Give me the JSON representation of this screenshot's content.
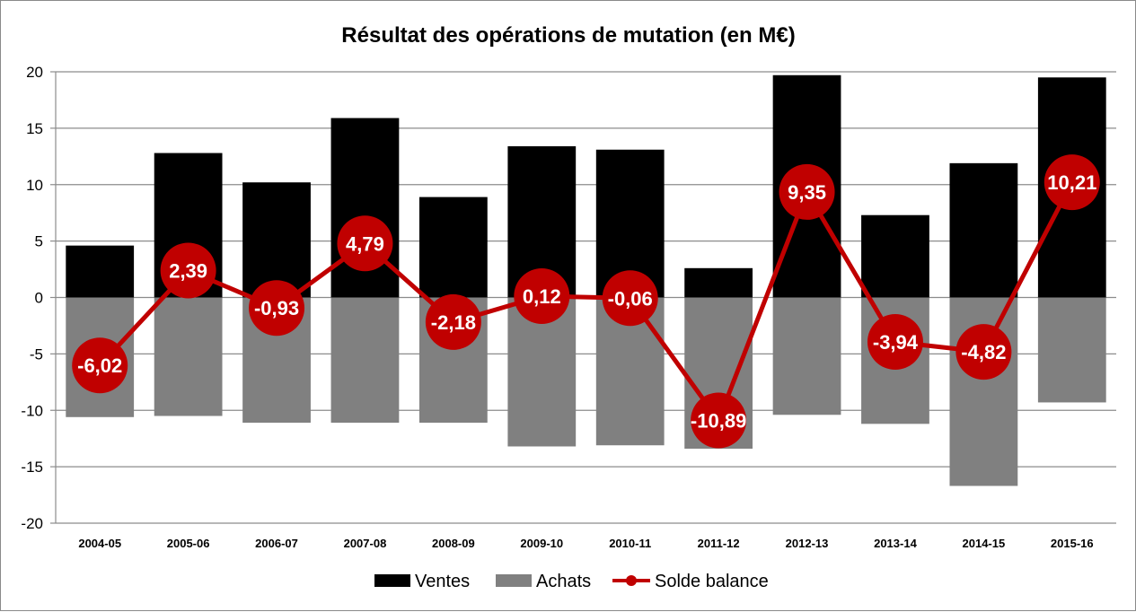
{
  "chart_data": {
    "type": "bar",
    "title": "Résultat des opérations de mutation (en M€)",
    "categories": [
      "2004-05",
      "2005-06",
      "2006-07",
      "2007-08",
      "2008-09",
      "2009-10",
      "2010-11",
      "2011-12",
      "2012-13",
      "2013-14",
      "2014-15",
      "2015-16"
    ],
    "series": [
      {
        "name": "Ventes",
        "type": "bar",
        "color": "#000000",
        "values": [
          4.6,
          12.8,
          10.2,
          15.9,
          8.9,
          13.4,
          13.1,
          2.6,
          19.7,
          7.3,
          11.9,
          19.5
        ]
      },
      {
        "name": "Achats",
        "type": "bar",
        "color": "#808080",
        "values": [
          -10.6,
          -10.5,
          -11.1,
          -11.1,
          -11.1,
          -13.2,
          -13.1,
          -13.4,
          -10.4,
          -11.2,
          -16.7,
          -9.3
        ]
      },
      {
        "name": "Solde balance",
        "type": "line",
        "color": "#c00000",
        "values": [
          -6.02,
          2.39,
          -0.93,
          4.79,
          -2.18,
          0.12,
          -0.06,
          -10.89,
          9.35,
          -3.94,
          -4.82,
          10.21
        ],
        "labels": [
          "-6,02",
          "2,39",
          "-0,93",
          "4,79",
          "-2,18",
          "0,12",
          "-0,06",
          "-10,89",
          "9,35",
          "-3,94",
          "-4,82",
          "10,21"
        ]
      }
    ],
    "ylim": [
      -20,
      20
    ],
    "yticks": [
      20,
      15,
      10,
      5,
      0,
      -5,
      -10,
      -15,
      -20
    ],
    "ytick_labels": [
      "20",
      "15",
      "10",
      "5",
      "0",
      "-5",
      "-10",
      "-15",
      "-20"
    ],
    "grid": true,
    "legend_position": "bottom"
  }
}
